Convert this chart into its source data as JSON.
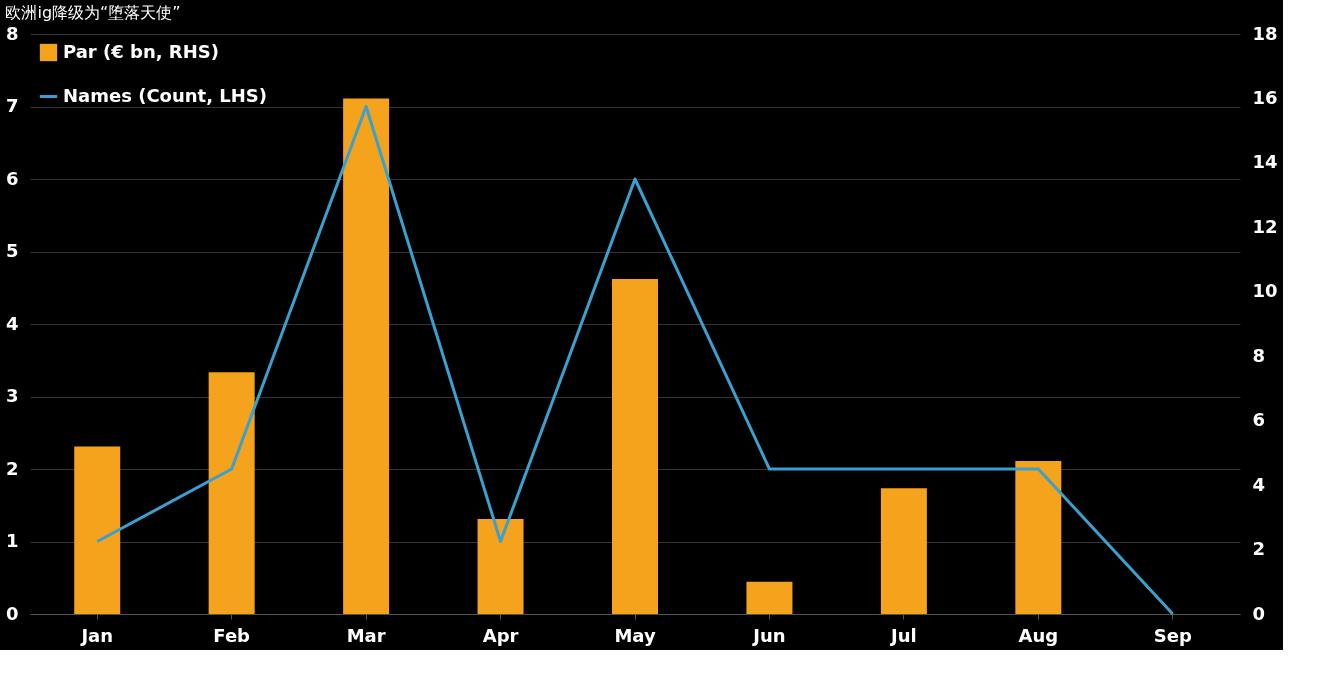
{
  "chart_data": {
    "type": "bar",
    "title": "欧洲ig降级为“堕落天使”",
    "categories": [
      "Jan",
      "Feb",
      "Mar",
      "Apr",
      "May",
      "Jun",
      "Jul",
      "Aug",
      "Sep"
    ],
    "series": [
      {
        "name": "Par (€ bn, RHS)",
        "axis": "y2",
        "color": "#f5a21c",
        "values": [
          5.2,
          7.5,
          16.0,
          2.95,
          10.4,
          1.0,
          3.9,
          4.75,
          null
        ]
      },
      {
        "name": "Names (Count, LHS)",
        "type": "line",
        "axis": "y",
        "color": "#3aa0d0",
        "values": [
          1,
          2,
          7,
          1,
          6,
          2,
          2,
          2,
          0
        ]
      }
    ],
    "ylim": [
      0,
      8
    ],
    "yticks": [
      0,
      1,
      2,
      3,
      4,
      5,
      6,
      7,
      8
    ],
    "y2lim": [
      0,
      18
    ],
    "y2ticks": [
      0,
      2,
      4,
      6,
      8,
      10,
      12,
      14,
      16,
      18
    ],
    "grid": "y",
    "legend": "top left"
  }
}
